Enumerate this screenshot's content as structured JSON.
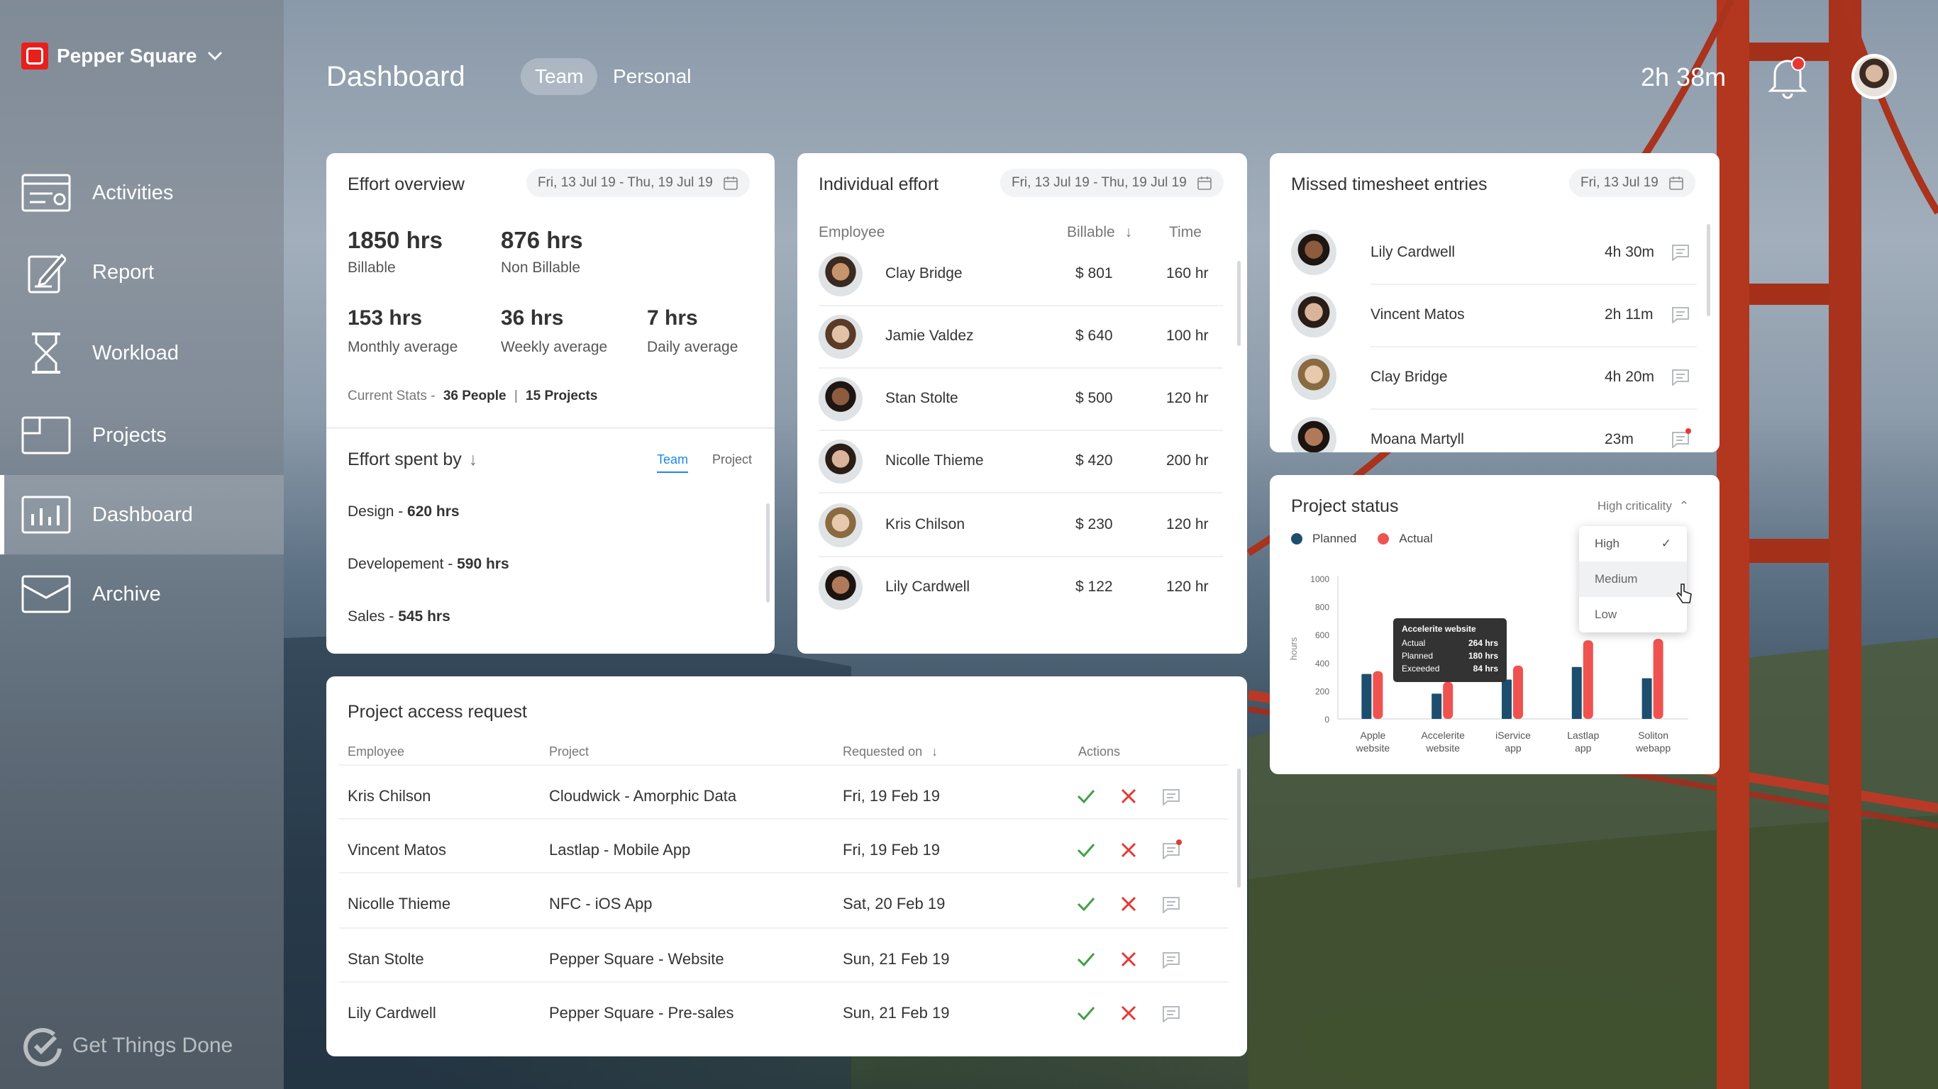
{
  "brand": {
    "name": "Pepper Square"
  },
  "nav": {
    "items": [
      {
        "label": "Activities"
      },
      {
        "label": "Report"
      },
      {
        "label": "Workload"
      },
      {
        "label": "Projects"
      },
      {
        "label": "Dashboard"
      },
      {
        "label": "Archive"
      }
    ]
  },
  "footer": {
    "tagline": "Get Things Done"
  },
  "header": {
    "title": "Dashboard",
    "tabs": [
      {
        "label": "Team"
      },
      {
        "label": "Personal"
      }
    ],
    "timer": "2h 38m"
  },
  "effort_overview": {
    "title": "Effort overview",
    "date": "Fri, 13 Jul 19 - Thu, 19 Jul 19",
    "stats": [
      {
        "value": "1850 hrs",
        "label": "Billable"
      },
      {
        "value": "876 hrs",
        "label": "Non Billable"
      },
      {
        "value": "153 hrs",
        "label": "Monthly average"
      },
      {
        "value": "36 hrs",
        "label": "Weekly average"
      },
      {
        "value": "7 hrs",
        "label": "Daily average"
      }
    ],
    "current_label": "Current Stats  -",
    "people": "36 People",
    "sep": "|",
    "projects": "15 Projects"
  },
  "effort_spent": {
    "title": "Effort spent by",
    "tabs": [
      "Team",
      "Project"
    ],
    "items": [
      {
        "label": "Design -",
        "value": "620 hrs"
      },
      {
        "label": "Developement -",
        "value": "590 hrs"
      },
      {
        "label": "Sales -",
        "value": "545 hrs"
      }
    ]
  },
  "individual_effort": {
    "title": "Individual effort",
    "date": "Fri, 13 Jul 19 - Thu, 19 Jul 19",
    "columns": [
      "Employee",
      "Billable",
      "Time"
    ],
    "rows": [
      {
        "name": "Clay Bridge",
        "billable": "$ 801",
        "time": "160 hr"
      },
      {
        "name": "Jamie Valdez",
        "billable": "$ 640",
        "time": "100 hr"
      },
      {
        "name": "Stan Stolte",
        "billable": "$ 500",
        "time": "120 hr"
      },
      {
        "name": "Nicolle Thieme",
        "billable": "$ 420",
        "time": "200 hr"
      },
      {
        "name": "Kris Chilson",
        "billable": "$ 230",
        "time": "120 hr"
      },
      {
        "name": "Lily Cardwell",
        "billable": "$ 122",
        "time": "120 hr"
      }
    ]
  },
  "missed": {
    "title": "Missed timesheet entries",
    "date": "Fri, 13 Jul 19",
    "rows": [
      {
        "name": "Lily Cardwell",
        "time": "4h 30m"
      },
      {
        "name": "Vincent Matos",
        "time": "2h 11m"
      },
      {
        "name": "Clay Bridge",
        "time": "4h 20m"
      },
      {
        "name": "Moana Martyll",
        "time": "23m"
      }
    ]
  },
  "project_status": {
    "title": "Project status",
    "filter": "High criticality",
    "legend": [
      "Planned",
      "Actual"
    ],
    "dropdown": [
      "High",
      "Medium",
      "Low"
    ],
    "tooltip": {
      "title": "Accelerite website",
      "rows": [
        {
          "k": "Actual",
          "v": "264 hrs"
        },
        {
          "k": "Planned",
          "v": "180 hrs"
        },
        {
          "k": "Exceeded",
          "v": "84 hrs"
        }
      ]
    }
  },
  "access": {
    "title": "Project access request",
    "columns": [
      "Employee",
      "Project",
      "Requested on",
      "Actions"
    ],
    "rows": [
      {
        "employee": "Kris Chilson",
        "project": "Cloudwick - Amorphic Data",
        "date": "Fri, 19 Feb 19"
      },
      {
        "employee": "Vincent Matos",
        "project": "Lastlap - Mobile App",
        "date": "Fri, 19 Feb 19"
      },
      {
        "employee": "Nicolle Thieme",
        "project": "NFC - iOS App",
        "date": "Sat, 20 Feb 19"
      },
      {
        "employee": "Stan Stolte",
        "project": "Pepper Square - Website",
        "date": "Sun, 21 Feb 19"
      },
      {
        "employee": "Lily Cardwell",
        "project": "Pepper Square - Pre-sales",
        "date": "Sun, 21 Feb 19"
      }
    ]
  },
  "chart_data": {
    "type": "bar",
    "ylabel": "hours",
    "ylim": [
      0,
      1000
    ],
    "yticks": [
      0,
      200,
      400,
      600,
      800,
      1000
    ],
    "categories": [
      "Apple website",
      "Accelerite website",
      "iService app",
      "Lastlap app",
      "Soliton webapp"
    ],
    "category_lines": [
      [
        "Apple",
        "website"
      ],
      [
        "Accelerite",
        "website"
      ],
      [
        "iService",
        "app"
      ],
      [
        "Lastlap",
        "app"
      ],
      [
        "Soliton",
        "webapp"
      ]
    ],
    "series": [
      {
        "name": "Planned",
        "values": [
          320,
          180,
          280,
          370,
          290
        ]
      },
      {
        "name": "Actual",
        "values": [
          340,
          264,
          380,
          560,
          570
        ]
      }
    ],
    "colors": {
      "Planned": "#1d4e6e",
      "Actual": "#ef5350"
    },
    "legend": "top-left",
    "grid": false
  },
  "colors": {
    "accent": "#1e88e5",
    "approve": "#43a047",
    "reject": "#e53935",
    "brand": "#e8201c"
  }
}
